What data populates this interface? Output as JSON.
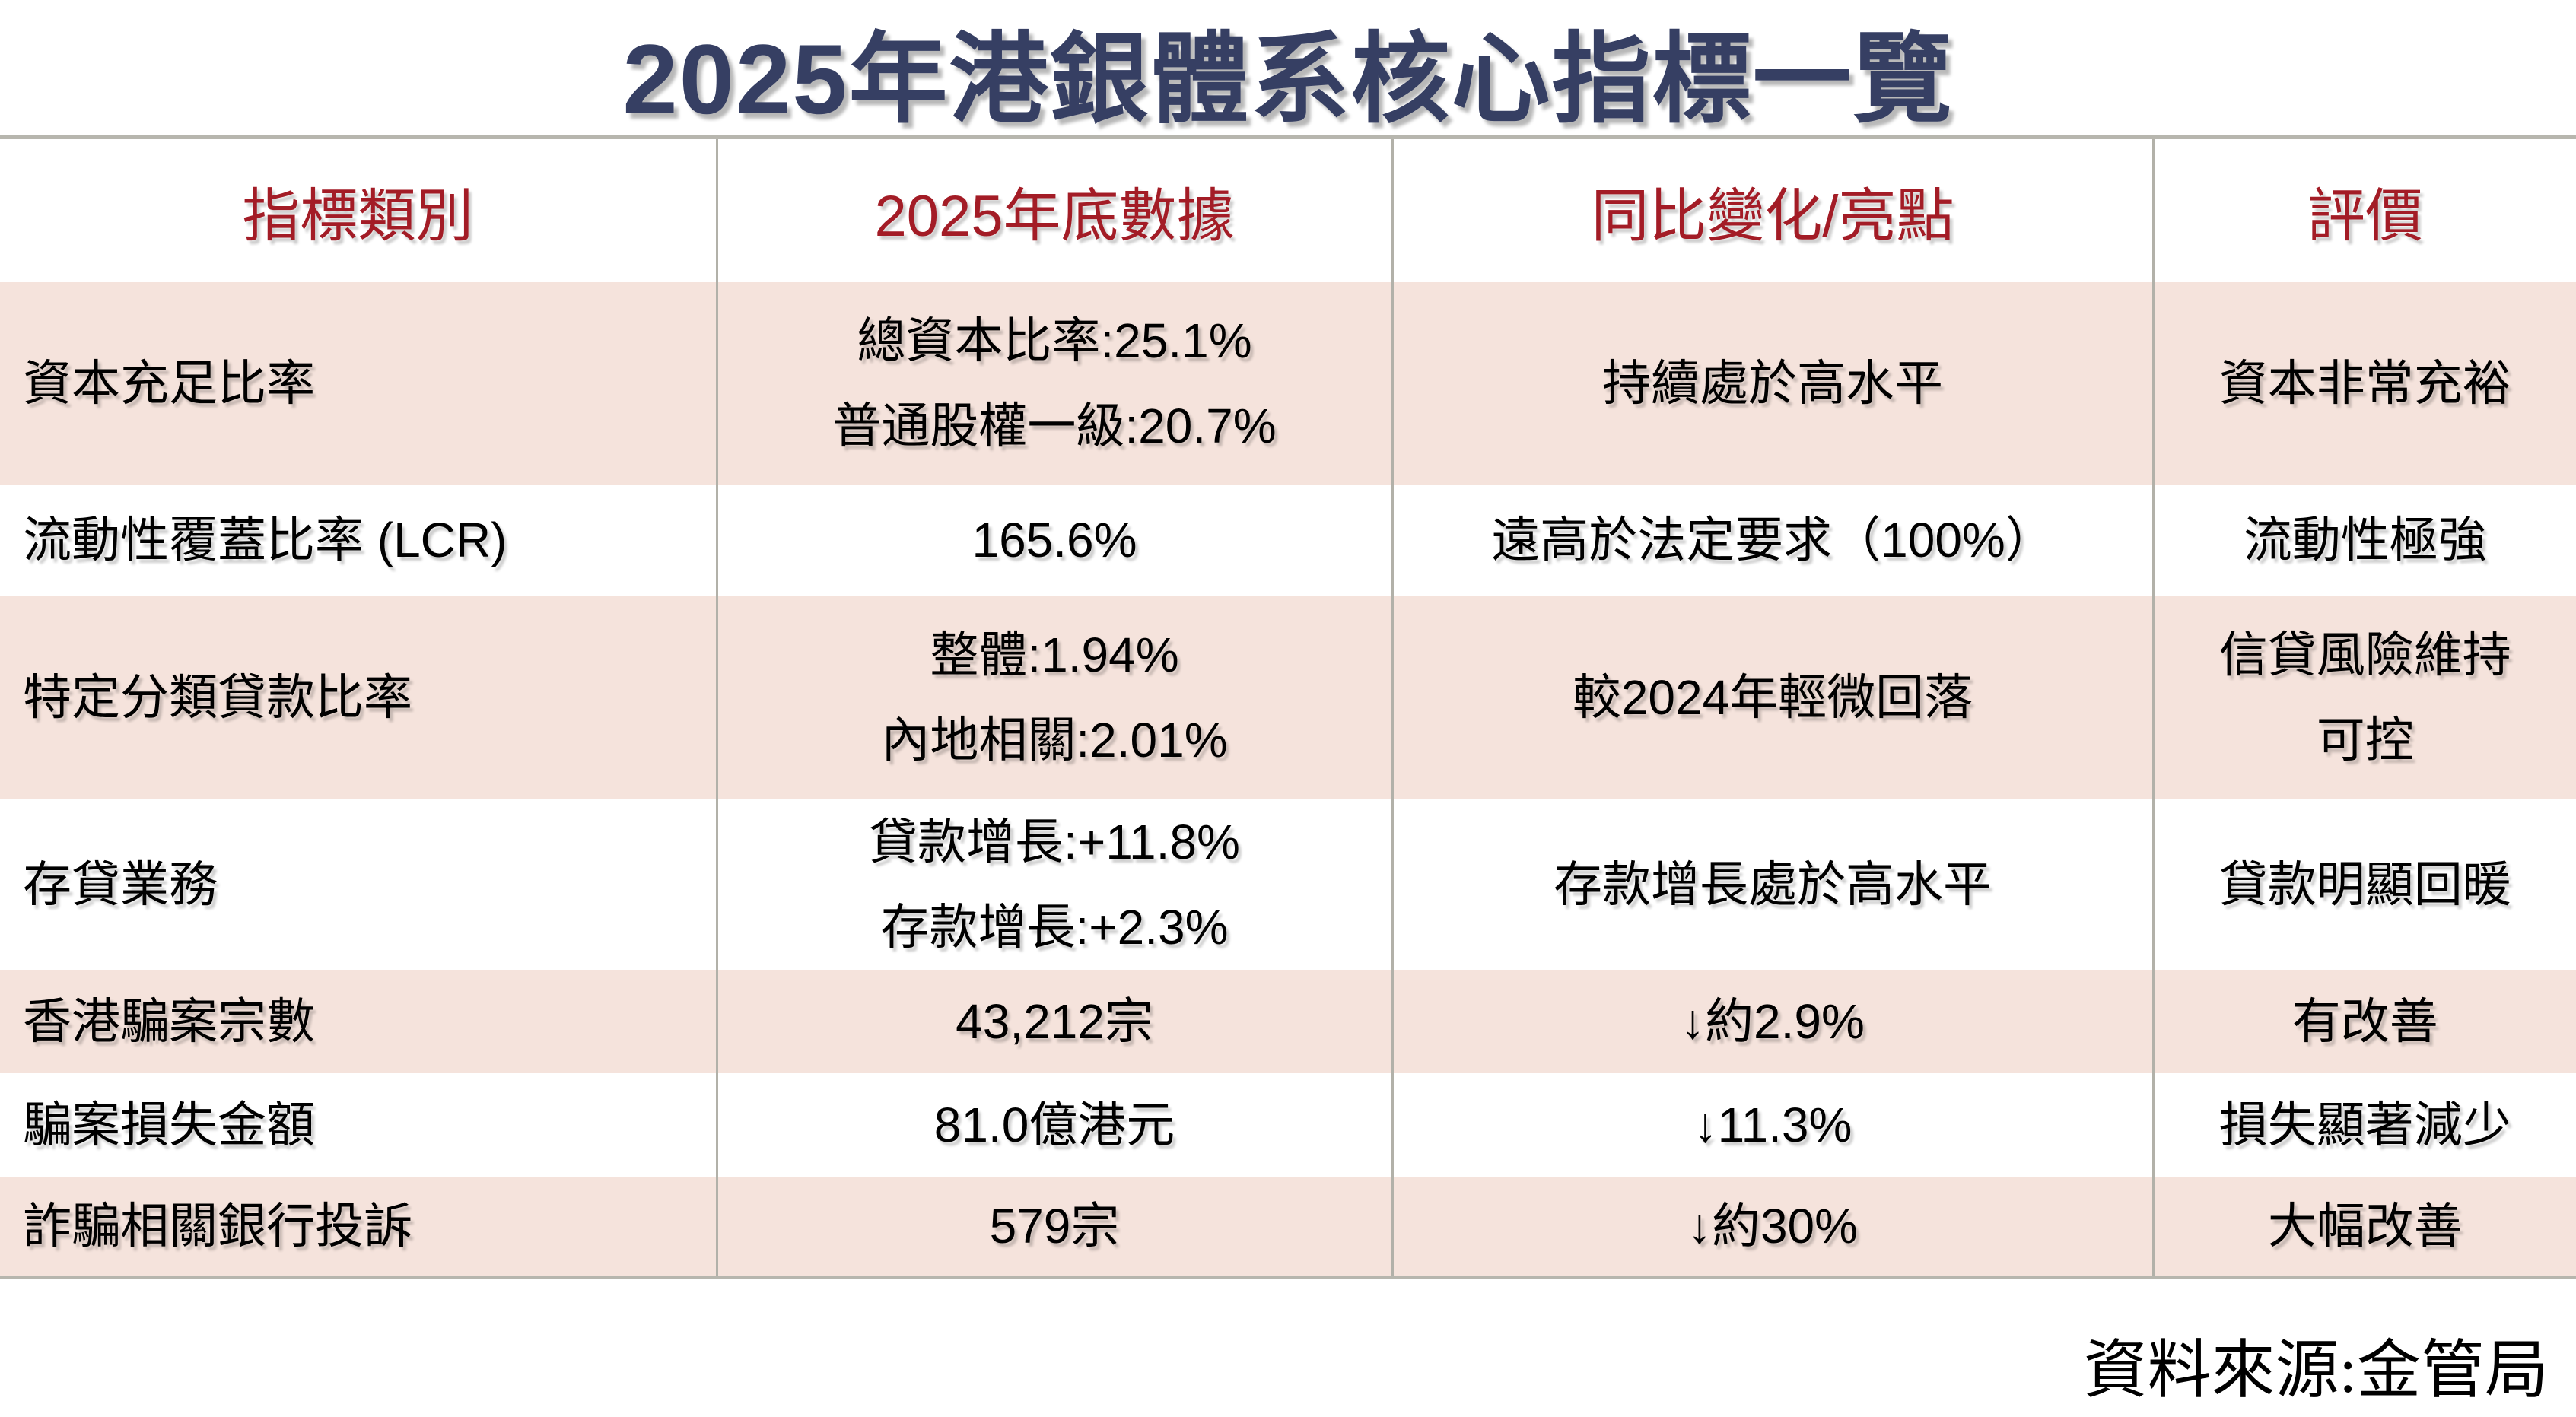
{
  "chart_data": {
    "type": "table",
    "title": "2025年港銀體系核心指標一覽",
    "source": "資料來源:金管局",
    "columns": [
      "指標類別",
      "2025年底數據",
      "同比變化/亮點",
      "評價"
    ],
    "rows": [
      [
        "資本充足比率",
        [
          "總資本比率:25.1%",
          "普通股權一級:20.7%"
        ],
        "持續處於高水平",
        "資本非常充裕"
      ],
      [
        "流動性覆蓋比率 (LCR)",
        "165.6%",
        "遠高於法定要求（100%）",
        "流動性極強"
      ],
      [
        "特定分類貸款比率",
        [
          "整體:1.94%",
          "內地相關:2.01%"
        ],
        "較2024年輕微回落",
        [
          "信貸風險維持",
          "可控"
        ]
      ],
      [
        "存貸業務",
        [
          "貸款增長:+11.8%",
          "存款增長:+2.3%"
        ],
        "存款增長處於高水平",
        "貸款明顯回暖"
      ],
      [
        "香港騙案宗數",
        "43,212宗",
        "↓約2.9%",
        "有改善"
      ],
      [
        "騙案損失金額",
        "81.0億港元",
        "↓11.3%",
        "損失顯著減少"
      ],
      [
        "詐騙相關銀行投訴",
        "579宗",
        "↓約30%",
        "大幅改善"
      ]
    ],
    "layout": {
      "grid": "vertical column separators only, top and bottom rules, alternating row shading"
    }
  },
  "colors": {
    "title_navy": "#363f63",
    "header_red": "#a31c26",
    "row_pink": "#f5e3dc",
    "border_gray": "#b2b1a9",
    "body_text": "#000000",
    "background": "#ffffff"
  }
}
